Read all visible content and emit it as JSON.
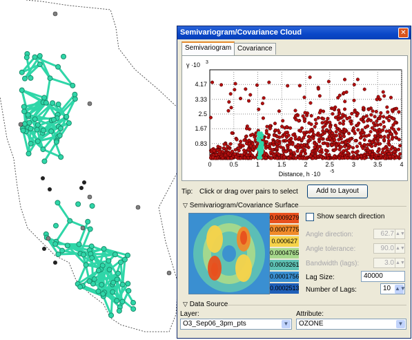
{
  "window": {
    "title": "Semivariogram/Covariance Cloud",
    "close_glyph": "✕"
  },
  "tabs": [
    {
      "label": "Semivariogram",
      "active": true
    },
    {
      "label": "Covariance",
      "active": false
    }
  ],
  "tip": {
    "label": "Tip:",
    "text": "Click or drag over pairs to select"
  },
  "add_to_layout": "Add to Layout",
  "surface_section": "Semivariogram/Covariance Surface",
  "surface_legend": [
    "0.0009279",
    "0.0007775",
    "0.000627",
    "0.0004765",
    "0.0003261",
    "0.0001756",
    "0.0002513"
  ],
  "legend_colors": [
    "#e8501e",
    "#f08a2a",
    "#f7d34a",
    "#a7d98c",
    "#5ec1b4",
    "#3a8fd1",
    "#1f5fb8"
  ],
  "show_search_direction": {
    "label": "Show search direction",
    "checked": false
  },
  "angle_direction": {
    "label": "Angle direction:",
    "value": "62.7"
  },
  "angle_tolerance": {
    "label": "Angle tolerance:",
    "value": "90.0"
  },
  "bandwidth": {
    "label": "Bandwidth (lags):",
    "value": "3.0"
  },
  "lag_size": {
    "label": "Lag Size:",
    "value": "40000"
  },
  "number_of_lags": {
    "label": "Number of Lags:",
    "value": "10"
  },
  "data_source": "Data Source",
  "layer": {
    "label": "Layer:",
    "value": "O3_Sep06_3pm_pts"
  },
  "attribute": {
    "label": "Attribute:",
    "value": "OZONE"
  },
  "chart_data": {
    "type": "scatter",
    "ylabel": "γ ·10",
    "ylabel_exponent": "3",
    "xlabel": "Distance, h ·10",
    "xlabel_exponent": "-5",
    "x_ticks": [
      "0",
      "0.5",
      "1",
      "1.5",
      "2",
      "2.5",
      "3",
      "3.5",
      "4"
    ],
    "y_ticks": [
      "0.83",
      "1.67",
      "2.5",
      "3.33",
      "4.17"
    ],
    "xlim": [
      0,
      4
    ],
    "ylim": [
      0,
      5
    ],
    "grid": true,
    "point_color": "#b40f0f",
    "selected_color": "#2fd6a8",
    "selected_x_range": [
      1.0,
      1.1
    ]
  },
  "map": {
    "line_color": "#2fd6a8",
    "point_color": "#7f7f7f"
  }
}
